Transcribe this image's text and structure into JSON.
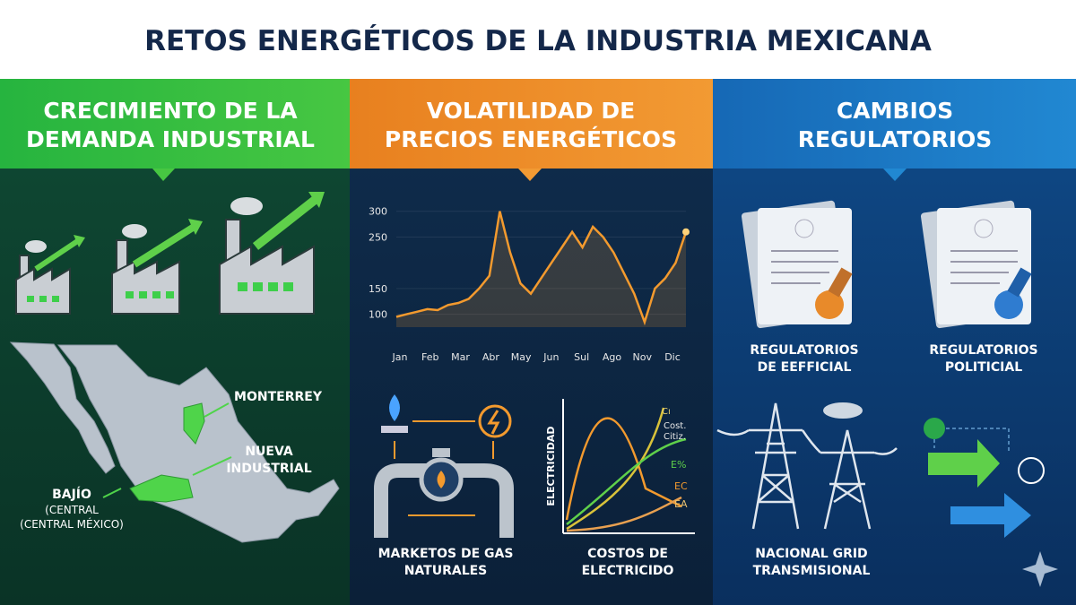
{
  "title": "RETOS ENERGÉTICOS DE LA INDUSTRIA MEXICANA",
  "panels": [
    {
      "heading": [
        "CRECIMIENTO DE LA",
        "DEMANDA INDUSTRIAL"
      ],
      "map_labels": {
        "monterrey": "MONTERREY",
        "nueva": [
          "NUEVA",
          "INDUSTRIAL"
        ],
        "bajio": [
          "BAJÍO",
          "(CENTRAL",
          "(CENTRAL MÉXICO)"
        ]
      }
    },
    {
      "heading": [
        "VOLATILIDAD DE",
        "PRECIOS ENERGÉTICOS"
      ],
      "price_chart": {
        "type": "line",
        "x_labels": [
          "Jan",
          "Feb",
          "Mar",
          "Abr",
          "May",
          "Jun",
          "Sul",
          "Ago",
          "Nov",
          "Dic"
        ],
        "values": [
          95,
          100,
          105,
          110,
          108,
          118,
          122,
          130,
          150,
          175,
          300,
          220,
          160,
          140,
          170,
          200,
          230,
          260,
          230,
          270,
          250,
          220,
          180,
          140,
          85,
          150,
          170,
          200,
          260
        ],
        "ylim": [
          75,
          310
        ],
        "yticks": [
          300,
          250,
          150,
          100
        ],
        "color": "#f39a2e"
      },
      "gas_label": [
        "MARKETOS DE GAS",
        "NATURALES"
      ],
      "cost_chart": {
        "y_label": "ELECTRICIDAD",
        "curve_labels": [
          "Cı",
          "Cost.",
          "Citiz.",
          "E%",
          "EC",
          "EA"
        ]
      },
      "cost_label": [
        "COSTOS DE",
        "ELECTRICIDO"
      ]
    },
    {
      "heading": [
        "CAMBIOS",
        "REGULATORIOS"
      ],
      "doc1_label": [
        "REGULATORIOS",
        "DE EEFFICIAL"
      ],
      "doc2_label": [
        "REGULATORIOS",
        "POLITICIAL"
      ],
      "grid_label": [
        "NACIONAL GRID",
        "TRANSMISIONAL"
      ]
    }
  ]
}
